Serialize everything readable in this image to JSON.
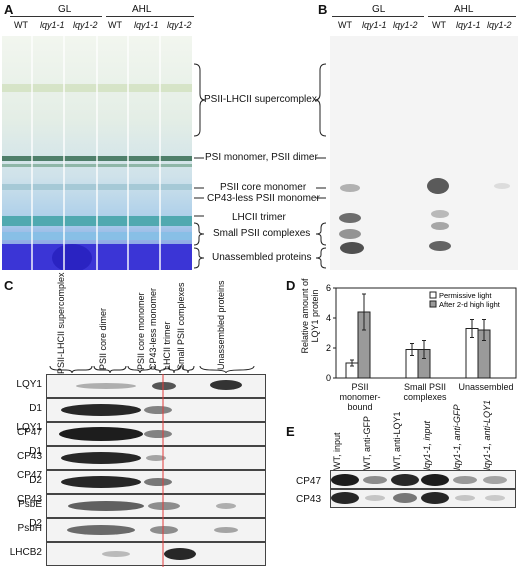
{
  "panelA": {
    "label": "A",
    "groups": [
      "GL",
      "AHL"
    ],
    "lanes": [
      "WT",
      "lqy1-1",
      "lqy1-2",
      "WT",
      "lqy1-1",
      "lqy1-2"
    ],
    "bands": [
      "PSII-LHCII supercomplex",
      "PSI monomer, PSII dimer",
      "PSII core monomer",
      "CP43-less PSII monomer",
      "LHCII trimer",
      "Small PSII complexes",
      "Unassembled proteins"
    ]
  },
  "panelB": {
    "label": "B",
    "groups": [
      "GL",
      "AHL"
    ],
    "lanes": [
      "WT",
      "lqy1-1",
      "lqy1-2",
      "WT",
      "lqy1-1",
      "lqy1-2"
    ]
  },
  "panelC": {
    "label": "C",
    "columns": [
      "PSII-LHCII supercomplex",
      "PSII  core dimer",
      "PSII core monomer",
      "CP43-less monomer",
      "LHCII trimer",
      "Small PSII complexes",
      "Unassembled proteins"
    ],
    "rows": [
      "LQY1",
      "D1",
      "CP47",
      "CP43",
      "D2",
      "PsbE",
      "PsbH",
      "LHCB2"
    ]
  },
  "panelD": {
    "label": "D",
    "chart_data": {
      "type": "bar",
      "ylabel": "Relative amount of LQY1 protein",
      "ylim": [
        0,
        6
      ],
      "yticks": [
        0,
        2,
        4,
        6
      ],
      "categories": [
        "PSII monomer-bound",
        "Small PSII complexes",
        "Unassembled"
      ],
      "series": [
        {
          "name": "Permissive light",
          "color": "#ffffff",
          "values": [
            1.0,
            1.9,
            3.3
          ],
          "errors": [
            0.2,
            0.4,
            0.6
          ]
        },
        {
          "name": "After 2-d high light",
          "color": "#9a9a9a",
          "values": [
            4.4,
            1.9,
            3.2
          ],
          "errors": [
            1.2,
            0.6,
            0.7
          ]
        }
      ]
    }
  },
  "panelE": {
    "label": "E",
    "columns": [
      "WT, input",
      "WT, anti-GFP",
      "WT, anti-LQY1",
      "lqy1-1, input",
      "lqy1-1, anti-GFP",
      "lqy1-1, anti-LQY1"
    ],
    "rows": [
      "CP47",
      "CP43"
    ]
  }
}
